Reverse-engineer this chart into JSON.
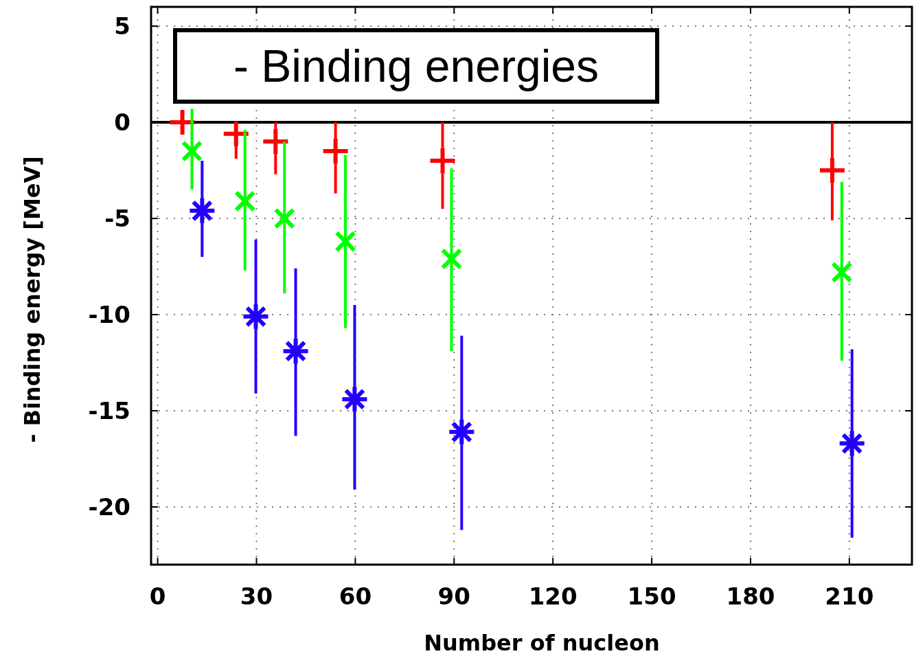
{
  "chart_data": {
    "type": "scatter",
    "title": "- Binding energies",
    "xlabel": "Number of nucleon",
    "ylabel": "- Binding energy [MeV]",
    "xlim": [
      -2,
      229
    ],
    "xticks": [
      0,
      30,
      60,
      90,
      120,
      150,
      180,
      210
    ],
    "ylim": [
      -23,
      6
    ],
    "yticks": [
      -20,
      -15,
      -10,
      -5,
      0,
      5
    ],
    "grid": true,
    "ref_lines": [
      {
        "axis": "y",
        "value": 0,
        "color": "#000000",
        "line_style": "solid"
      }
    ],
    "series": [
      {
        "color": "#ff0000",
        "marker": "cross",
        "x": [
          7.5,
          23.8,
          35.8,
          54,
          86.5,
          204.8
        ],
        "values": [
          0,
          -0.6,
          -1.0,
          -1.5,
          -2.0,
          -2.5
        ],
        "errors": [
          [
            -0.5,
            0.55
          ],
          [
            -1.9,
            0
          ],
          [
            -2.7,
            0
          ],
          [
            -3.7,
            0
          ],
          [
            -4.5,
            0
          ],
          [
            -5.1,
            0
          ]
        ]
      },
      {
        "color": "#00ff00",
        "marker": "x",
        "x": [
          10.4,
          26.5,
          38.5,
          57,
          89.2,
          207.7
        ],
        "values": [
          -1.5,
          -4.1,
          -5.0,
          -6.2,
          -7.1,
          -7.8
        ],
        "errors": [
          [
            -3.5,
            0.7
          ],
          [
            -7.7,
            -0.4
          ],
          [
            -8.9,
            -1.0
          ],
          [
            -10.7,
            -1.7
          ],
          [
            -11.9,
            -2.4
          ],
          [
            -12.4,
            -3.1
          ]
        ]
      },
      {
        "color": "#2200ff",
        "marker": "star",
        "x": [
          13.5,
          29.8,
          41.9,
          59.8,
          92.3,
          210.8
        ],
        "values": [
          -4.6,
          -10.1,
          -11.9,
          -14.4,
          -16.1,
          -16.7
        ],
        "errors": [
          [
            -7.0,
            -2.0
          ],
          [
            -14.1,
            -6.1
          ],
          [
            -16.3,
            -7.6
          ],
          [
            -19.1,
            -9.5
          ],
          [
            -21.2,
            -11.1
          ],
          [
            -21.6,
            -11.8
          ]
        ]
      }
    ]
  }
}
